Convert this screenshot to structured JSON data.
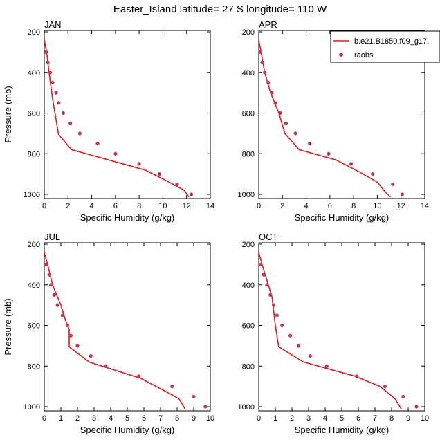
{
  "title": "Easter_Island  latitude= 27 S longitude= 110 W",
  "legend": {
    "model": "b.e21.B1850.f09_g17.",
    "obs": "raobs"
  },
  "colors": {
    "model": "#e31a1c",
    "obs": "#c0395a"
  },
  "chart_data": [
    {
      "type": "line",
      "label": "JAN",
      "xlabel": "Specific Humidity (g/kg)",
      "ylabel": "Pressure (mb)",
      "xlim": [
        0,
        14
      ],
      "ylim": [
        200,
        1000
      ],
      "y_inverted": true,
      "xticks": [
        0,
        2,
        4,
        6,
        8,
        10,
        12,
        14
      ],
      "yticks": [
        200,
        400,
        600,
        800,
        1000
      ],
      "series": [
        {
          "name": "b.e21.B1850.f09_g17.",
          "kind": "line",
          "points": [
            [
              0.0,
              240
            ],
            [
              0.2,
              300
            ],
            [
              0.4,
              400
            ],
            [
              0.7,
              530
            ],
            [
              1.2,
              705
            ],
            [
              2.3,
              780
            ],
            [
              8.5,
              880
            ],
            [
              10.2,
              930
            ],
            [
              11.8,
              980
            ],
            [
              12.2,
              1013
            ]
          ]
        },
        {
          "name": "raobs",
          "kind": "scatter",
          "points": [
            [
              0.15,
              300
            ],
            [
              0.3,
              350
            ],
            [
              0.5,
              400
            ],
            [
              0.7,
              450
            ],
            [
              1.0,
              500
            ],
            [
              1.2,
              550
            ],
            [
              1.6,
              600
            ],
            [
              2.2,
              650
            ],
            [
              3.0,
              700
            ],
            [
              4.5,
              750
            ],
            [
              6.0,
              800
            ],
            [
              8.0,
              850
            ],
            [
              9.7,
              900
            ],
            [
              11.2,
              950
            ],
            [
              12.4,
              1000
            ]
          ]
        }
      ]
    },
    {
      "type": "line",
      "label": "APR",
      "xlabel": "Specific Humidity (g/kg)",
      "ylabel": "",
      "xlim": [
        0,
        14
      ],
      "ylim": [
        200,
        1000
      ],
      "y_inverted": true,
      "xticks": [
        0,
        2,
        4,
        6,
        8,
        10,
        12,
        14
      ],
      "yticks": [
        200,
        400,
        600,
        800,
        1000
      ],
      "series": [
        {
          "name": "b.e21.B1850.f09_g17.",
          "kind": "line",
          "points": [
            [
              0.0,
              240
            ],
            [
              0.2,
              300
            ],
            [
              0.5,
              400
            ],
            [
              1.0,
              500
            ],
            [
              1.7,
              600
            ],
            [
              2.2,
              700
            ],
            [
              3.4,
              780
            ],
            [
              6.5,
              830
            ],
            [
              8.5,
              890
            ],
            [
              10.0,
              940
            ],
            [
              10.7,
              990
            ],
            [
              11.1,
              1013
            ]
          ]
        },
        {
          "name": "raobs",
          "kind": "scatter",
          "points": [
            [
              0.1,
              300
            ],
            [
              0.3,
              350
            ],
            [
              0.5,
              400
            ],
            [
              0.8,
              450
            ],
            [
              1.1,
              500
            ],
            [
              1.4,
              550
            ],
            [
              1.8,
              600
            ],
            [
              2.3,
              650
            ],
            [
              3.1,
              700
            ],
            [
              4.3,
              750
            ],
            [
              5.9,
              800
            ],
            [
              7.8,
              850
            ],
            [
              9.6,
              900
            ],
            [
              11.3,
              950
            ],
            [
              12.1,
              1000
            ]
          ]
        }
      ]
    },
    {
      "type": "line",
      "label": "JUL",
      "xlabel": "Specific Humidity (g/kg)",
      "ylabel": "Pressure (mb)",
      "xlim": [
        0,
        10
      ],
      "ylim": [
        200,
        1000
      ],
      "y_inverted": true,
      "xticks": [
        0,
        1,
        2,
        3,
        4,
        5,
        6,
        7,
        8,
        9,
        10
      ],
      "yticks": [
        200,
        400,
        600,
        800,
        1000
      ],
      "series": [
        {
          "name": "b.e21.B1850.f09_g17.",
          "kind": "line",
          "points": [
            [
              0.0,
              240
            ],
            [
              0.2,
              300
            ],
            [
              0.5,
              400
            ],
            [
              1.0,
              500
            ],
            [
              1.3,
              580
            ],
            [
              1.5,
              620
            ],
            [
              1.5,
              705
            ],
            [
              2.7,
              780
            ],
            [
              5.8,
              860
            ],
            [
              7.2,
              920
            ],
            [
              8.1,
              960
            ],
            [
              8.5,
              1013
            ]
          ]
        },
        {
          "name": "raobs",
          "kind": "scatter",
          "points": [
            [
              0.1,
              300
            ],
            [
              0.3,
              350
            ],
            [
              0.4,
              400
            ],
            [
              0.6,
              450
            ],
            [
              0.8,
              500
            ],
            [
              1.1,
              550
            ],
            [
              1.4,
              600
            ],
            [
              1.6,
              650
            ],
            [
              2.0,
              700
            ],
            [
              2.8,
              750
            ],
            [
              3.7,
              800
            ],
            [
              5.7,
              850
            ],
            [
              7.7,
              900
            ],
            [
              9.0,
              950
            ],
            [
              9.7,
              1000
            ]
          ]
        }
      ]
    },
    {
      "type": "line",
      "label": "OCT",
      "xlabel": "Specific Humidity (g/kg)",
      "ylabel": "",
      "xlim": [
        0,
        10
      ],
      "ylim": [
        200,
        1000
      ],
      "y_inverted": true,
      "xticks": [
        0,
        1,
        2,
        3,
        4,
        5,
        6,
        7,
        8,
        9,
        10
      ],
      "yticks": [
        200,
        400,
        600,
        800,
        1000
      ],
      "series": [
        {
          "name": "b.e21.B1850.f09_g17.",
          "kind": "line",
          "points": [
            [
              0.0,
              240
            ],
            [
              0.2,
              300
            ],
            [
              0.5,
              380
            ],
            [
              0.8,
              460
            ],
            [
              1.0,
              600
            ],
            [
              1.2,
              705
            ],
            [
              2.7,
              780
            ],
            [
              5.8,
              850
            ],
            [
              7.3,
              900
            ],
            [
              8.2,
              960
            ],
            [
              8.6,
              1013
            ]
          ]
        },
        {
          "name": "raobs",
          "kind": "scatter",
          "points": [
            [
              0.1,
              300
            ],
            [
              0.3,
              350
            ],
            [
              0.5,
              400
            ],
            [
              0.7,
              450
            ],
            [
              0.9,
              500
            ],
            [
              1.1,
              550
            ],
            [
              1.4,
              600
            ],
            [
              1.9,
              650
            ],
            [
              2.4,
              700
            ],
            [
              3.1,
              750
            ],
            [
              4.1,
              800
            ],
            [
              5.9,
              850
            ],
            [
              7.6,
              900
            ],
            [
              8.7,
              950
            ],
            [
              9.5,
              1000
            ]
          ]
        }
      ]
    }
  ]
}
